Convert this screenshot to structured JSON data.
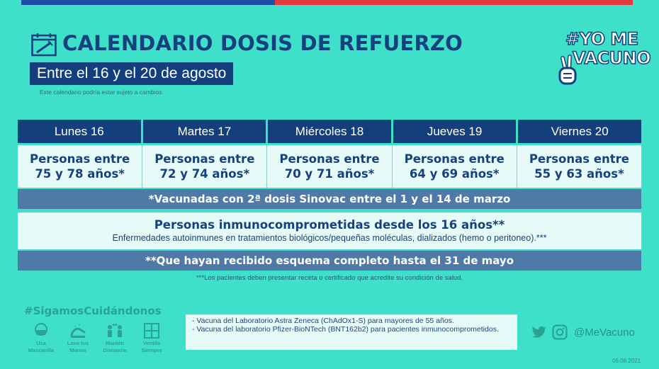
{
  "header": {
    "title": "CALENDARIO DOSIS DE REFUERZO",
    "subtitle": "Entre el 16 y el 20 de agosto",
    "disclaimer": "Este calendario podría estar sujeto a cambios."
  },
  "brand": {
    "line1": "#YO ME",
    "line2": "VACUNO"
  },
  "days": [
    {
      "label": "Lunes 16",
      "group_line1": "Personas entre",
      "group_line2": "75 y 78 años*"
    },
    {
      "label": "Martes 17",
      "group_line1": "Personas entre",
      "group_line2": "72 y 74 años*"
    },
    {
      "label": "Miércoles 18",
      "group_line1": "Personas entre",
      "group_line2": "70 y 71 años*"
    },
    {
      "label": "Jueves 19",
      "group_line1": "Personas entre",
      "group_line2": "64 y 69 años*"
    },
    {
      "label": "Viernes 20",
      "group_line1": "Personas entre",
      "group_line2": "55 y 63 años*"
    }
  ],
  "notes": {
    "sinovac": "*Vacunadas con 2ª dosis Sinovac entre el 1 y el 14 de marzo",
    "immuno_title": "Personas inmunocomprometidas desde los 16 años**",
    "immuno_detail": "Enfermedades autoinmunes en tratamientos biológicos/pequeñas moléculas, dializados (hemo o peritoneo).***",
    "complete": "**Que hayan recibido esquema completo hasta el 31 de mayo",
    "footnote": "***Los pacientes deben presentar receta o certificado que acredite su condición de salud."
  },
  "footer": {
    "hashtag": "#SigamosCuidándonos",
    "tips": [
      {
        "icon": "mask-icon",
        "line1": "Usa",
        "line2": "Mascarilla"
      },
      {
        "icon": "wash-hands-icon",
        "line1": "Lava tus",
        "line2": "Manos"
      },
      {
        "icon": "distance-icon",
        "line1": "Mantén",
        "line2": "Distancia"
      },
      {
        "icon": "window-icon",
        "line1": "Ventila",
        "line2": "Siempre"
      }
    ],
    "vaccines": [
      "Vacuna del Laboratorio Astra Zeneca (ChAdOx1-S) para mayores de 55 años.",
      "Vacuna del laboratorio Pfizer-BioNTech (BNT162b2) para pacientes inmunocomprometidos."
    ],
    "social_handle": "@MeVacuno",
    "date": "06.08.2021"
  },
  "colors": {
    "background": "#3fe0c9",
    "navy": "#13407d",
    "steel": "#4f7aa8",
    "light": "#e6fbf7",
    "accent_red": "#e03a3e"
  }
}
